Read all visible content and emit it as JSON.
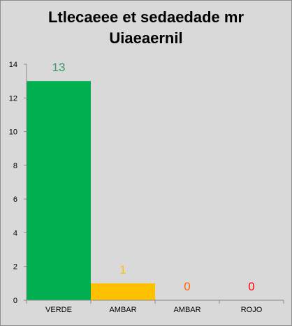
{
  "chart_data": {
    "type": "bar",
    "title_lines": [
      "Ltlecaeee et sedaedade mr",
      "Uiaeaernil"
    ],
    "categories": [
      "VERDE",
      "AMBAR",
      "AMBAR",
      "ROJO"
    ],
    "values": [
      13,
      1,
      0,
      0
    ],
    "bar_colors": [
      "#00b050",
      "#ffc000",
      "#ff6600",
      "#ff0000"
    ],
    "label_colors": [
      "#3a9a66",
      "#ffc000",
      "#ff6600",
      "#ff0000"
    ],
    "ylim": [
      0,
      14
    ],
    "yticks": [
      0,
      2,
      4,
      6,
      8,
      10,
      12,
      14
    ],
    "xlabel": "",
    "ylabel": "",
    "grid": false,
    "legend": "none"
  },
  "colors": {
    "background": "#d9d9d9",
    "axis": "#8c8c8c"
  }
}
